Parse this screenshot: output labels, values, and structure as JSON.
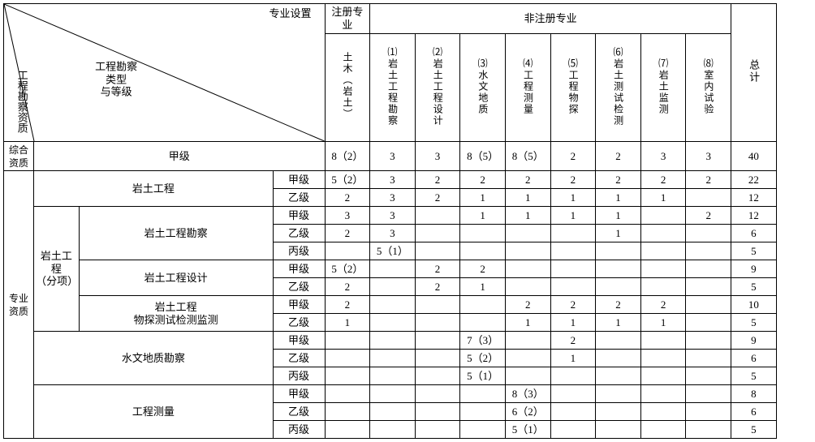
{
  "header": {
    "diag_top": "专业设置",
    "diag_mid": "工程勘察<br>类型<br>与等级",
    "diag_bot": "工程勘察资质",
    "reg_major": "注册专业",
    "nonreg_major": "非注册专业",
    "total": "总计",
    "col_civil": "土木（岩土）",
    "col1_num": "⑴",
    "col1": "岩土工程勘察",
    "col2_num": "⑵",
    "col2": "岩土工程设计",
    "col3_num": "⑶",
    "col3": "水文地质",
    "col4_num": "⑷",
    "col4": "工程测量",
    "col5_num": "⑸",
    "col5": "工程物探",
    "col6_num": "⑹",
    "col6": "岩土测试检测",
    "col7_num": "⑺",
    "col7": "岩土监测",
    "col8_num": "⑻",
    "col8": "室内试验"
  },
  "row_labels": {
    "zonghe": "综合资质",
    "jiaji": "甲级",
    "zhuanye": "专业资质",
    "yantu_gongcheng": "岩土工程",
    "yiji": "乙级",
    "yantu_fenxiang_l1": "岩土工程",
    "yantu_fenxiang_l2": "（分项）",
    "yantu_kancha": "岩土工程勘察",
    "bingji": "丙级",
    "yantu_sheji": "岩土工程设计",
    "yantu_wutan_l1": "岩土工程",
    "yantu_wutan_l2": "物探测试检测监测",
    "shuiwen": "水文地质勘察",
    "gongcheng_celiang": "工程测量"
  },
  "rows": {
    "r1": [
      "8（2）",
      "3",
      "3",
      "8（5）",
      "8（5）",
      "2",
      "2",
      "3",
      "3",
      "40"
    ],
    "r2": [
      "5（2）",
      "3",
      "2",
      "2",
      "2",
      "2",
      "2",
      "2",
      "2",
      "22"
    ],
    "r3": [
      "2",
      "3",
      "2",
      "1",
      "1",
      "1",
      "1",
      "1",
      "",
      "12"
    ],
    "r4": [
      "3",
      "3",
      "",
      "1",
      "1",
      "1",
      "1",
      "",
      "2",
      "12"
    ],
    "r5": [
      "2",
      "3",
      "",
      "",
      "",
      "",
      "1",
      "",
      "",
      "6"
    ],
    "r6": [
      "",
      "5（1）",
      "",
      "",
      "",
      "",
      "",
      "",
      "",
      "5"
    ],
    "r7": [
      "5（2）",
      "",
      "2",
      "2",
      "",
      "",
      "",
      "",
      "",
      "9"
    ],
    "r8": [
      "2",
      "",
      "2",
      "1",
      "",
      "",
      "",
      "",
      "",
      "5"
    ],
    "r9": [
      "2",
      "",
      "",
      "",
      "2",
      "2",
      "2",
      "2",
      "",
      "10"
    ],
    "r10": [
      "1",
      "",
      "",
      "",
      "1",
      "1",
      "1",
      "1",
      "",
      "5"
    ],
    "r11": [
      "",
      "",
      "",
      "7（3）",
      "",
      "2",
      "",
      "",
      "",
      "9"
    ],
    "r12": [
      "",
      "",
      "",
      "5（2）",
      "",
      "1",
      "",
      "",
      "",
      "6"
    ],
    "r13": [
      "",
      "",
      "",
      "5（1）",
      "",
      "",
      "",
      "",
      "",
      "5"
    ],
    "r14": [
      "",
      "",
      "",
      "",
      "8（3）",
      "",
      "",
      "",
      "",
      "8"
    ],
    "r15": [
      "",
      "",
      "",
      "",
      "6（2）",
      "",
      "",
      "",
      "",
      "6"
    ],
    "r16": [
      "",
      "",
      "",
      "",
      "5（1）",
      "",
      "",
      "",
      "",
      "5"
    ]
  }
}
